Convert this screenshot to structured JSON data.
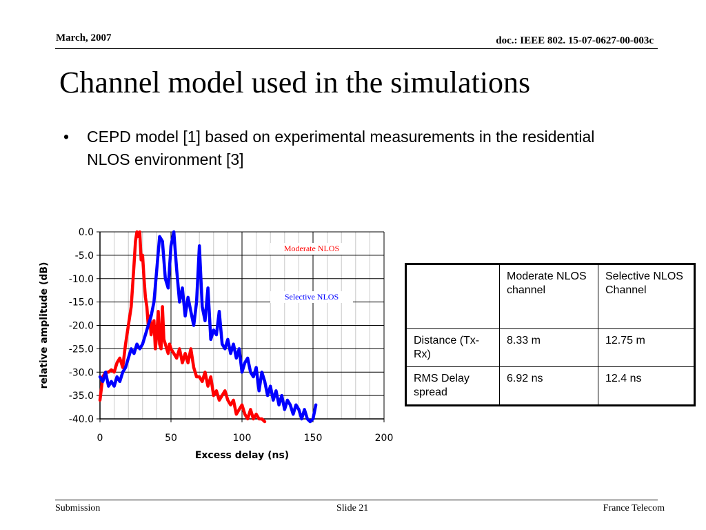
{
  "header": {
    "date": "March, 2007",
    "doc_id": "doc.: IEEE 802. 15-07-0627-00-003c"
  },
  "title": "Channel model used in the simulations",
  "bullets": [
    {
      "marker": "•",
      "text": "CEPD model [1] based on experimental measurements in the residential NLOS environment [3]"
    }
  ],
  "chart_data": {
    "type": "line",
    "xlabel": "Excess delay (ns)",
    "ylabel": "relative amplitude (dB)",
    "xlim": [
      0,
      200
    ],
    "ylim": [
      -40,
      0
    ],
    "xticks": [
      "0",
      "50",
      "100",
      "150",
      "200"
    ],
    "yticks": [
      "0.0",
      "-5.0",
      "-10.0",
      "-15.0",
      "-20.0",
      "-25.0",
      "-30.0",
      "-35.0",
      "-40.0"
    ],
    "grid": true,
    "annotations": [
      "Moderate NLOS",
      "Selective NLOS"
    ],
    "series": [
      {
        "name": "Moderate NLOS",
        "color": "#ff0000",
        "x": [
          0,
          2,
          4,
          6,
          8,
          10,
          12,
          14,
          16,
          18,
          20,
          22,
          24,
          25,
          26,
          27,
          28,
          29,
          30,
          31,
          32,
          33,
          34,
          35,
          36,
          37,
          38,
          39,
          40,
          41,
          42,
          43,
          44,
          45,
          46,
          47,
          48,
          49,
          50,
          52,
          54,
          56,
          58,
          60,
          62,
          64,
          66,
          68,
          70,
          72,
          74,
          76,
          78,
          80,
          82,
          84,
          86,
          88,
          90,
          92,
          94,
          96,
          98,
          100,
          102,
          104,
          106,
          108,
          110,
          112,
          114,
          116
        ],
        "y": [
          -36,
          -31,
          -30,
          -30,
          -29.5,
          -30,
          -28,
          -27,
          -29,
          -24,
          -20,
          -16,
          -7,
          -2,
          0,
          -1,
          0,
          -6,
          -5,
          -10,
          -14,
          -16,
          -20,
          -18,
          -22,
          -20,
          -19,
          -25,
          -22,
          -17,
          -24,
          -25,
          -16,
          -23,
          -24,
          -25,
          -26,
          -24,
          -25,
          -26,
          -27,
          -25,
          -28,
          -26,
          -28,
          -25,
          -29,
          -31,
          -31,
          -32,
          -30,
          -33,
          -31,
          -35,
          -34,
          -36,
          -35,
          -34,
          -36,
          -37,
          -36,
          -39,
          -38,
          -37,
          -39,
          -40,
          -38,
          -40,
          -39,
          -40,
          -40,
          -41
        ]
      },
      {
        "name": "Selective NLOS",
        "color": "#0000ff",
        "x": [
          0,
          2,
          4,
          6,
          8,
          10,
          12,
          14,
          16,
          18,
          20,
          22,
          24,
          26,
          28,
          30,
          32,
          34,
          36,
          38,
          40,
          42,
          44,
          46,
          48,
          50,
          52,
          54,
          56,
          58,
          60,
          62,
          64,
          66,
          68,
          70,
          72,
          74,
          76,
          78,
          80,
          82,
          84,
          86,
          88,
          90,
          92,
          94,
          96,
          98,
          100,
          102,
          104,
          106,
          108,
          110,
          112,
          114,
          116,
          118,
          120,
          122,
          124,
          126,
          128,
          130,
          132,
          134,
          136,
          138,
          140,
          142,
          144,
          146,
          148,
          150,
          152
        ],
        "y": [
          -31,
          -32,
          -30,
          -33,
          -32,
          -33,
          -31,
          -32,
          -30,
          -29,
          -27,
          -25,
          -26,
          -24,
          -25,
          -24,
          -22,
          -20,
          -18,
          -15,
          -8,
          -1,
          -2,
          -10,
          -12,
          -3,
          0,
          -8,
          -15,
          -12,
          -18,
          -14,
          -17,
          -20,
          -15,
          -3,
          -16,
          -19,
          -12,
          -23,
          -21,
          -22,
          -17,
          -24,
          -25,
          -23,
          -26,
          -24,
          -27,
          -25,
          -30,
          -28,
          -27,
          -30,
          -31,
          -29,
          -34,
          -30,
          -32,
          -35,
          -33,
          -36,
          -34,
          -37,
          -35,
          -38,
          -36,
          -37,
          -39,
          -37,
          -38,
          -40,
          -38,
          -40,
          -41,
          -40,
          -37
        ]
      }
    ]
  },
  "table": {
    "rows": [
      [
        "",
        "Moderate NLOS channel",
        "Selective NLOS Channel"
      ],
      [
        "Distance (Tx-Rx)",
        "8.33 m",
        "12.75 m"
      ],
      [
        "RMS Delay spread",
        "6.92 ns",
        "12.4 ns"
      ]
    ]
  },
  "footer": {
    "left": "Submission",
    "center": "Slide 21",
    "right": "France Telecom"
  }
}
